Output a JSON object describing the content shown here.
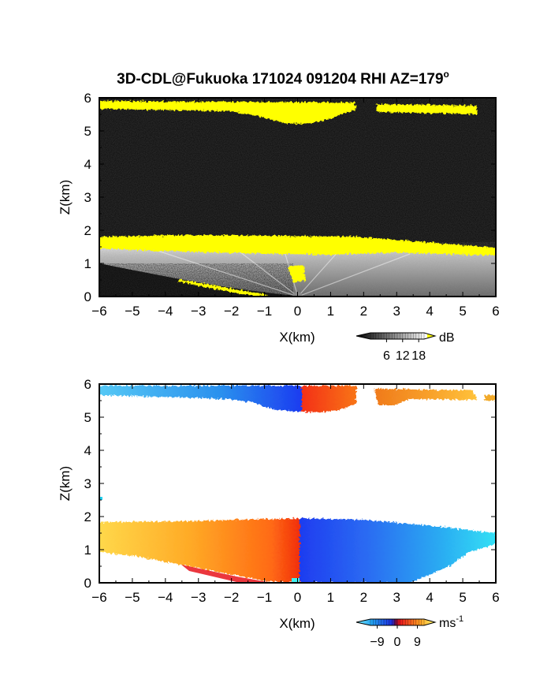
{
  "figure": {
    "title_main": "3D-CDL@Fukuoka 171024 091204 RHI AZ=179",
    "title_degree": "o"
  },
  "chart_data": [
    {
      "type": "heatmap",
      "title": "",
      "xlabel": "X(km)",
      "ylabel": "Z(km)",
      "xlim": [
        -6,
        6
      ],
      "ylim": [
        0,
        6
      ],
      "x_ticks": [
        "-6",
        "-5",
        "-4",
        "-3",
        "-2",
        "-1",
        "0",
        "1",
        "2",
        "3",
        "4",
        "5",
        "6"
      ],
      "y_ticks": [
        "0",
        "1",
        "2",
        "3",
        "4",
        "5",
        "6"
      ],
      "quantity": "SNR",
      "colorbar": {
        "unit": "dB",
        "tick_labels": [
          "6",
          "12",
          "18"
        ],
        "ticks": [
          6,
          12,
          18
        ],
        "range": [
          0,
          20
        ],
        "colormap": "grayscale (black to white), yellow above 18"
      },
      "features": [
        {
          "label": "cloud layer",
          "x": [
            -6,
            1.7
          ],
          "z": [
            5.45,
            5.85
          ]
        },
        {
          "label": "cloud layer",
          "x": [
            2.3,
            5.3
          ],
          "z": [
            5.5,
            5.8
          ]
        },
        {
          "label": "boundary layer top",
          "x": [
            -6,
            6
          ],
          "z": [
            1.3,
            1.75
          ]
        }
      ]
    },
    {
      "type": "heatmap",
      "title": "",
      "xlabel": "X(km)",
      "ylabel": "Z(km)",
      "xlim": [
        -6,
        6
      ],
      "ylim": [
        0,
        6
      ],
      "x_ticks": [
        "-6",
        "-5",
        "-4",
        "-3",
        "-2",
        "-1",
        "0",
        "1",
        "2",
        "3",
        "4",
        "5",
        "6"
      ],
      "y_ticks": [
        "0",
        "1",
        "2",
        "3",
        "4",
        "5",
        "6"
      ],
      "quantity": "Doppler velocity",
      "colorbar": {
        "unit": "ms",
        "unit_superscript": "-1",
        "tick_labels": [
          "-9",
          "0",
          "9"
        ],
        "ticks": [
          -9,
          0,
          9
        ],
        "range": [
          -12,
          12
        ],
        "colormap": "cyan-blue (negative) to red-orange-yellow (positive)"
      },
      "features": [
        {
          "label": "upper layer",
          "x": [
            -6,
            0
          ],
          "z": [
            5.5,
            5.9
          ],
          "sign": "negative"
        },
        {
          "label": "upper layer",
          "x": [
            0,
            1.8
          ],
          "z": [
            5.3,
            5.9
          ],
          "sign": "positive"
        },
        {
          "label": "upper layer",
          "x": [
            2.3,
            5.5
          ],
          "z": [
            5.5,
            5.8
          ],
          "sign": "positive"
        },
        {
          "label": "lower layer",
          "x": [
            -6,
            0.1
          ],
          "z": [
            0,
            1.75
          ],
          "sign": "positive"
        },
        {
          "label": "lower layer",
          "x": [
            0.1,
            6
          ],
          "z": [
            0,
            1.85
          ],
          "sign": "negative"
        }
      ]
    }
  ]
}
